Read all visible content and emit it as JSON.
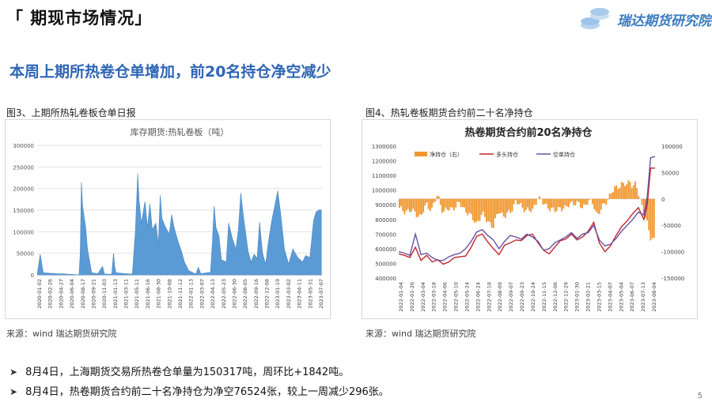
{
  "header": {
    "title": "「 期现市场情况」",
    "logo_text": "瑞达期货研究院"
  },
  "subtitle": "本周上期所热卷仓单增加，前20名持仓净空减少",
  "figure3": {
    "caption": "图3、上期所热轧卷板仓单日报",
    "source": "来源：wind   瑞达期货研究院"
  },
  "figure4": {
    "caption": "图4、热轧卷板期货合约前二十名净持仓",
    "source": "来源：wind   瑞达期货研究院"
  },
  "bullets": [
    "8月4日，上海期货交易所热卷仓单量为150317吨，周环比+1842吨。",
    "8月4日，热卷期货合约前二十名净持仓为净空76524张，较上一周减少296张。"
  ],
  "page_number": "5",
  "colors": {
    "accent_blue": "#2e64b4",
    "bar_blue": "#5b9bd5",
    "orange": "#f0962d",
    "red": "#c0282d",
    "purple": "#6a4fa3"
  },
  "chart_data": [
    {
      "type": "area",
      "title": "库存期货:热轧卷板（吨）",
      "ylim": [
        0,
        300000
      ],
      "yticks": [
        "300000",
        "250000",
        "200000",
        "150000",
        "100000",
        "50000",
        "0"
      ],
      "ytick_values": [
        300000,
        250000,
        200000,
        150000,
        100000,
        50000,
        0
      ],
      "xticks": [
        "2020-01-02",
        "2020-02-26",
        "2020-04-27",
        "2020-06-04",
        "2020-08-17",
        "2020-09-21",
        "2020-11-03",
        "2021-01-13",
        "2021-03-11",
        "2021-05-11",
        "2021-06-16",
        "2021-08-30",
        "2021-10-08",
        "2021-11-12",
        "2022-01-13",
        "2022-03-07",
        "2022-04-13",
        "2022-05-23",
        "2022-06-30",
        "2022-08-05",
        "2022-09-16",
        "2022-12-08",
        "2023-01-19",
        "2023-03-02",
        "2023-04-11",
        "2023-05-31",
        "2023-07-07"
      ],
      "points": [
        [
          0,
          0
        ],
        [
          0.5,
          48000
        ],
        [
          1,
          5000
        ],
        [
          3,
          3000
        ],
        [
          4,
          2500
        ],
        [
          6,
          1000
        ],
        [
          6.9,
          0
        ],
        [
          7.1,
          50000
        ],
        [
          7.3,
          215000
        ],
        [
          7.5,
          160000
        ],
        [
          8,
          110000
        ],
        [
          8.3,
          60000
        ],
        [
          9,
          5000
        ],
        [
          10,
          3000
        ],
        [
          10.8,
          20000
        ],
        [
          11.1,
          2000
        ],
        [
          12.3,
          1500
        ],
        [
          12.6,
          50000
        ],
        [
          12.8,
          20000
        ],
        [
          13,
          5000
        ],
        [
          14.5,
          3000
        ],
        [
          15.7,
          2000
        ],
        [
          16.2,
          100000
        ],
        [
          16.6,
          235000
        ],
        [
          16.8,
          175000
        ],
        [
          17.2,
          120000
        ],
        [
          17.8,
          170000
        ],
        [
          18.2,
          110000
        ],
        [
          18.6,
          165000
        ],
        [
          19,
          105000
        ],
        [
          19.6,
          120000
        ],
        [
          20,
          70000
        ],
        [
          20.3,
          185000
        ],
        [
          20.6,
          130000
        ],
        [
          21.2,
          110000
        ],
        [
          21.8,
          95000
        ],
        [
          22.2,
          140000
        ],
        [
          22.6,
          110000
        ],
        [
          23.2,
          80000
        ],
        [
          23.8,
          55000
        ],
        [
          24.3,
          30000
        ],
        [
          25,
          10000
        ],
        [
          25.7,
          5000
        ],
        [
          26.2,
          2000
        ],
        [
          26.6,
          18000
        ],
        [
          27,
          3000
        ],
        [
          28.6,
          6000
        ],
        [
          28.9,
          75000
        ],
        [
          29.2,
          160000
        ],
        [
          29.5,
          110000
        ],
        [
          30,
          90000
        ],
        [
          30.4,
          35000
        ],
        [
          31.2,
          30000
        ],
        [
          31.6,
          120000
        ],
        [
          32.2,
          85000
        ],
        [
          32.8,
          60000
        ],
        [
          33.2,
          105000
        ],
        [
          33.6,
          190000
        ],
        [
          34,
          140000
        ],
        [
          34.8,
          55000
        ],
        [
          35.3,
          30000
        ],
        [
          35.8,
          48000
        ],
        [
          36.3,
          38000
        ],
        [
          36.7,
          122000
        ],
        [
          37.2,
          50000
        ],
        [
          37.7,
          25000
        ],
        [
          38.1,
          70000
        ],
        [
          38.7,
          125000
        ],
        [
          39.2,
          160000
        ],
        [
          39.7,
          195000
        ],
        [
          40.2,
          140000
        ],
        [
          40.8,
          60000
        ],
        [
          41.5,
          25000
        ],
        [
          42.2,
          60000
        ],
        [
          43,
          40000
        ],
        [
          43.8,
          30000
        ],
        [
          44.3,
          45000
        ],
        [
          45,
          40000
        ],
        [
          45.6,
          125000
        ],
        [
          46,
          145000
        ],
        [
          46.5,
          150317
        ],
        [
          46.9,
          150317
        ],
        [
          46.9,
          0
        ]
      ],
      "x_range": [
        0,
        47
      ]
    },
    {
      "type": "bar+line",
      "title": "热卷期货合约前20名净持仓",
      "y_left_lim": [
        400000,
        1300000
      ],
      "y_left_ticks": [
        "1300000",
        "1200000",
        "1100000",
        "1000000",
        "900000",
        "800000",
        "700000",
        "600000",
        "500000",
        "400000"
      ],
      "y_left_values": [
        1300000,
        1200000,
        1100000,
        1000000,
        900000,
        800000,
        700000,
        600000,
        500000,
        400000
      ],
      "y_right_lim": [
        -150000,
        100000
      ],
      "y_right_ticks": [
        "100000",
        "50000",
        "0",
        "-50000",
        "-100000",
        "-150000"
      ],
      "y_right_values": [
        100000,
        50000,
        0,
        -50000,
        -100000,
        -150000
      ],
      "xticks": [
        "2022-01-04",
        "2022-01-26",
        "2022-03-04",
        "2022-03-18",
        "2022-04-06",
        "2022-05-10",
        "2022-05-24",
        "2022-06-24",
        "2022-07-18",
        "2022-08-09",
        "2022-09-07",
        "2022-09-23",
        "2022-10-24",
        "2022-11-15",
        "2022-12-06",
        "2022-12-29",
        "2023-01-30",
        "2023-02-21",
        "2023-03-15",
        "2023-04-07",
        "2023-05-04",
        "2023-06-07",
        "2023-07-13",
        "2023-08-04"
      ],
      "legend": [
        "净持仓（右）",
        "多头持仓",
        "空单持仓"
      ],
      "net_position_points": [
        [
          0,
          -20000
        ],
        [
          1.5,
          -25000
        ],
        [
          2,
          -35000
        ],
        [
          2.5,
          -10000
        ],
        [
          3,
          -20000
        ],
        [
          3.5,
          8000
        ],
        [
          4,
          -25000
        ],
        [
          5,
          -15000
        ],
        [
          5.5,
          -10000
        ],
        [
          6,
          -20000
        ],
        [
          6.5,
          -35000
        ],
        [
          7,
          -45000
        ],
        [
          7.5,
          -30000
        ],
        [
          8,
          -40000
        ],
        [
          8.5,
          -55000
        ],
        [
          9,
          -20000
        ],
        [
          9.5,
          -35000
        ],
        [
          10,
          -25000
        ],
        [
          10.5,
          -5000
        ],
        [
          11,
          -15000
        ],
        [
          11.5,
          -20000
        ],
        [
          12,
          -25000
        ],
        [
          12.5,
          5000
        ],
        [
          13,
          -10000
        ],
        [
          13.5,
          -15000
        ],
        [
          14,
          -25000
        ],
        [
          14.5,
          -15000
        ],
        [
          15,
          -20000
        ],
        [
          15.5,
          -5000
        ],
        [
          16,
          -10000
        ],
        [
          16.5,
          -15000
        ],
        [
          17,
          -5000
        ],
        [
          17.5,
          -10000
        ],
        [
          17.8,
          -30000
        ],
        [
          18.2,
          -20000
        ],
        [
          18.5,
          -10000
        ],
        [
          19,
          10000
        ],
        [
          19.5,
          20000
        ],
        [
          20,
          30000
        ],
        [
          20.5,
          25000
        ],
        [
          20.8,
          35000
        ],
        [
          21,
          25000
        ],
        [
          21.3,
          30000
        ],
        [
          21.6,
          0
        ],
        [
          22,
          -20000
        ],
        [
          22.3,
          -45000
        ],
        [
          22.6,
          -76524
        ],
        [
          23,
          -76524
        ]
      ],
      "long_points": [
        [
          0,
          565000
        ],
        [
          0.5,
          555000
        ],
        [
          1,
          540000
        ],
        [
          1.5,
          610000
        ],
        [
          2,
          520000
        ],
        [
          2.5,
          555000
        ],
        [
          3,
          510000
        ],
        [
          3.5,
          525000
        ],
        [
          4,
          495000
        ],
        [
          4.5,
          510000
        ],
        [
          5,
          540000
        ],
        [
          5.5,
          545000
        ],
        [
          6,
          550000
        ],
        [
          6.5,
          610000
        ],
        [
          7,
          685000
        ],
        [
          7.5,
          700000
        ],
        [
          8,
          645000
        ],
        [
          8.5,
          600000
        ],
        [
          9,
          560000
        ],
        [
          9.5,
          625000
        ],
        [
          10,
          640000
        ],
        [
          10.5,
          660000
        ],
        [
          11,
          655000
        ],
        [
          11.5,
          690000
        ],
        [
          12,
          700000
        ],
        [
          12.5,
          640000
        ],
        [
          13,
          590000
        ],
        [
          13.5,
          565000
        ],
        [
          14,
          610000
        ],
        [
          14.5,
          655000
        ],
        [
          15,
          665000
        ],
        [
          15.5,
          700000
        ],
        [
          16,
          660000
        ],
        [
          16.5,
          680000
        ],
        [
          17,
          720000
        ],
        [
          17.5,
          780000
        ],
        [
          18,
          640000
        ],
        [
          18.5,
          580000
        ],
        [
          19,
          620000
        ],
        [
          19.5,
          690000
        ],
        [
          20,
          750000
        ],
        [
          20.5,
          790000
        ],
        [
          21,
          840000
        ],
        [
          21.5,
          880000
        ],
        [
          22,
          800000
        ],
        [
          22.3,
          900000
        ],
        [
          22.6,
          1150000
        ],
        [
          23,
          1150000
        ]
      ],
      "short_points": [
        [
          0,
          580000
        ],
        [
          0.5,
          570000
        ],
        [
          1,
          555000
        ],
        [
          1.5,
          700000
        ],
        [
          2,
          560000
        ],
        [
          2.5,
          570000
        ],
        [
          3,
          540000
        ],
        [
          3.5,
          520000
        ],
        [
          4,
          520000
        ],
        [
          4.5,
          545000
        ],
        [
          5,
          560000
        ],
        [
          5.5,
          570000
        ],
        [
          6,
          600000
        ],
        [
          6.5,
          650000
        ],
        [
          7,
          715000
        ],
        [
          7.5,
          730000
        ],
        [
          8,
          690000
        ],
        [
          8.5,
          660000
        ],
        [
          9,
          600000
        ],
        [
          9.5,
          650000
        ],
        [
          10,
          690000
        ],
        [
          10.5,
          680000
        ],
        [
          11,
          665000
        ],
        [
          11.5,
          700000
        ],
        [
          12,
          680000
        ],
        [
          12.5,
          650000
        ],
        [
          13,
          590000
        ],
        [
          13.5,
          600000
        ],
        [
          14,
          640000
        ],
        [
          14.5,
          660000
        ],
        [
          15,
          680000
        ],
        [
          15.5,
          710000
        ],
        [
          16,
          670000
        ],
        [
          16.5,
          700000
        ],
        [
          17,
          710000
        ],
        [
          17.5,
          760000
        ],
        [
          18,
          660000
        ],
        [
          18.5,
          620000
        ],
        [
          19,
          630000
        ],
        [
          19.5,
          670000
        ],
        [
          20,
          720000
        ],
        [
          20.5,
          760000
        ],
        [
          21,
          800000
        ],
        [
          21.5,
          850000
        ],
        [
          22,
          830000
        ],
        [
          22.3,
          950000
        ],
        [
          22.6,
          1220000
        ],
        [
          23,
          1230000
        ]
      ],
      "x_range": [
        0,
        23
      ]
    }
  ]
}
